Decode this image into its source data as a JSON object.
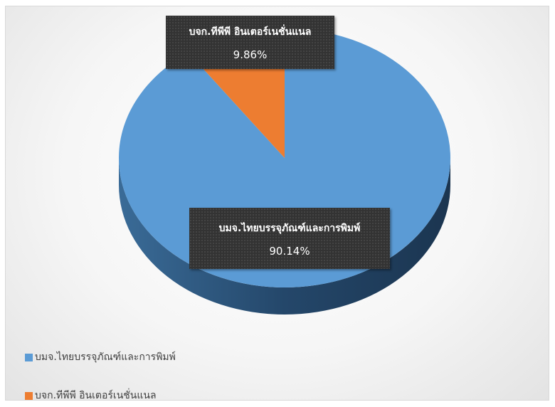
{
  "chart_data": {
    "type": "pie",
    "title": "",
    "slices": [
      {
        "label": "บมจ.ไทยบรรจุภัณฑ์และการพิมพ์",
        "value": 90.14,
        "display": "90.14%",
        "color": "#5b9bd5",
        "side_color": "#2e5b86"
      },
      {
        "label": "บจก.ทีพีพี อินเตอร์เนชั่นแนล",
        "value": 9.86,
        "display": "9.86%",
        "color": "#ed7d31",
        "side_color": "#a5521c"
      }
    ],
    "legend_position": "bottom-left",
    "three_d": true
  }
}
